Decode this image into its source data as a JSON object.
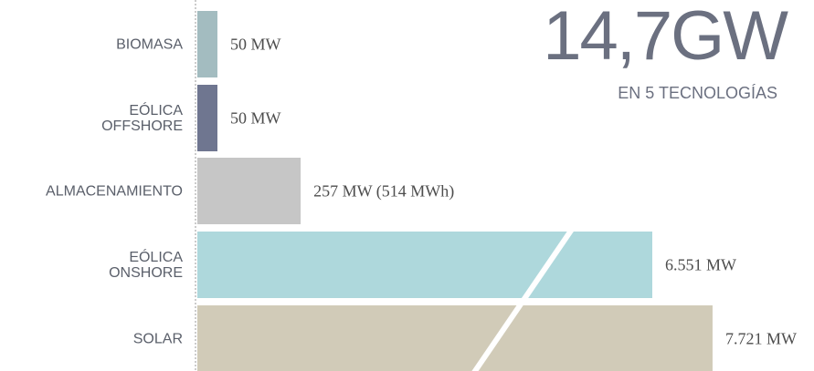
{
  "chart_data": {
    "type": "bar",
    "orientation": "horizontal",
    "title": "14,7GW",
    "subtitle": "EN 5 TECNOLOGÍAS",
    "categories": [
      "BIOMASA",
      "EÓLICA\nOFFSHORE",
      "ALMACENAMIENTO",
      "EÓLICA\nONSHORE",
      "SOLAR"
    ],
    "values": [
      50,
      50,
      257,
      6551,
      7721
    ],
    "value_labels": [
      "50 MW",
      "50 MW",
      "257 MW (514 MWh)",
      "6.551 MW",
      "7.721 MW"
    ],
    "colors": [
      "#a3bcc0",
      "#6f7690",
      "#c6c6c6",
      "#aed8dc",
      "#d1cbb8"
    ],
    "axis_break": true
  }
}
